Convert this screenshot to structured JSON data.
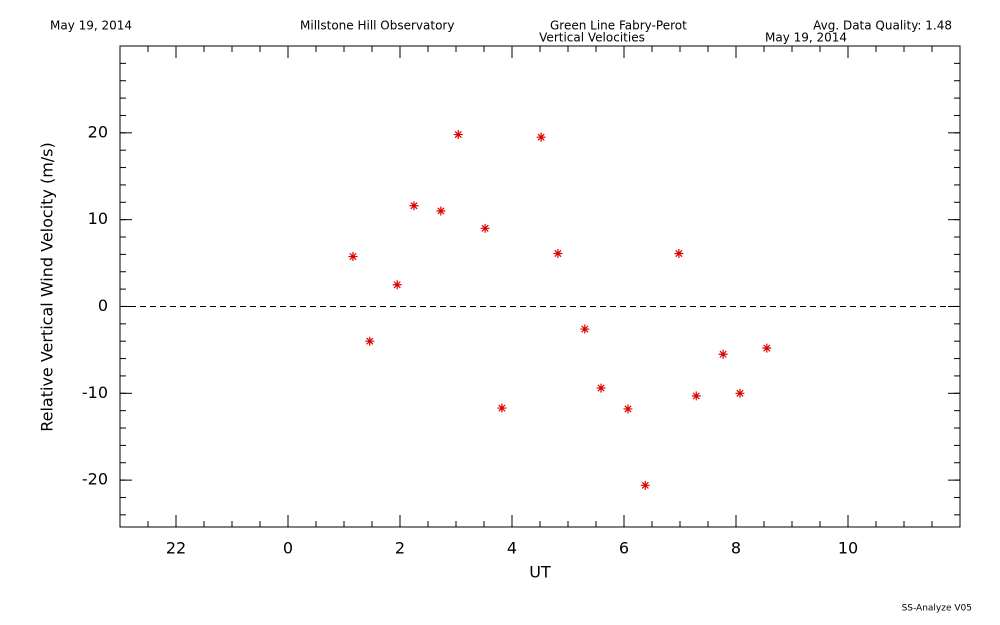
{
  "header": {
    "date": "May 19, 2014",
    "observatory": "Millstone Hill Observatory",
    "instrument": "Green Line Fabry-Perot",
    "quality": "Avg. Data Quality: 1.48",
    "footer": "SS-Analyze V05"
  },
  "chart_data": {
    "type": "scatter",
    "title": "Vertical Velocities",
    "subtitle": "May 19, 2014",
    "x_label": "UT",
    "y_label": "Relative Vertical Wind Velocity (m/s)",
    "color": "#dd0000",
    "marker": "asterisk",
    "reference_line": 0,
    "xlim": [
      -3,
      12
    ],
    "xticks": [
      {
        "value": -2,
        "label": "22"
      },
      0,
      2,
      4,
      6,
      8,
      10
    ],
    "ylim": [
      -25.4,
      30
    ],
    "yticks": [
      -20,
      -10,
      0,
      10,
      20
    ],
    "x": [
      1.16,
      1.46,
      1.95,
      2.25,
      2.73,
      3.04,
      3.52,
      3.82,
      4.52,
      4.82,
      5.3,
      5.59,
      6.07,
      6.38,
      6.98,
      7.29,
      7.77,
      8.07,
      8.55
    ],
    "values": [
      5.75,
      -4.0,
      2.5,
      11.6,
      11.0,
      19.8,
      9.0,
      -11.7,
      19.5,
      6.1,
      -2.6,
      -9.4,
      -11.8,
      -20.6,
      6.1,
      -10.3,
      -5.5,
      -10.0,
      -4.8
    ]
  }
}
